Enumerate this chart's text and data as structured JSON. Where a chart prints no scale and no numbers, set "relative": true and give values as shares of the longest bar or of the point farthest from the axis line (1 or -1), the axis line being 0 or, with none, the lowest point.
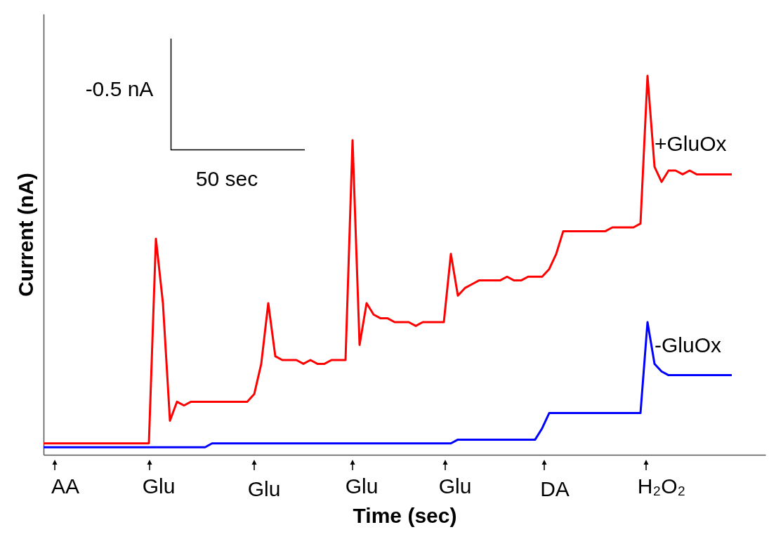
{
  "chart_data": {
    "type": "line",
    "relative": true,
    "xlabel": "Time (sec)",
    "ylabel": "Current (nA)",
    "grid": false,
    "categories": [
      null,
      null,
      null,
      null,
      null,
      null,
      null,
      null,
      null,
      null,
      null,
      null,
      null,
      null,
      null,
      null,
      null,
      null,
      null,
      null,
      null,
      null,
      null,
      null,
      null,
      null,
      null,
      null,
      null,
      null,
      null,
      null,
      null,
      null,
      null,
      null,
      null,
      null,
      null,
      null,
      null,
      null,
      null,
      null,
      null,
      null,
      null,
      null,
      null,
      null,
      null,
      null,
      null,
      null,
      null,
      null,
      null,
      null,
      null,
      null,
      null,
      null,
      null,
      null,
      null,
      null,
      null,
      null,
      null,
      null,
      null,
      null,
      null,
      null,
      null,
      null,
      null,
      null,
      null,
      null,
      null,
      null,
      null,
      null,
      null,
      null,
      null,
      null,
      null,
      null,
      null,
      null,
      null,
      null,
      null,
      null,
      null,
      null,
      null
    ],
    "series": [
      {
        "name": "+GluOx",
        "color": "#ff0000",
        "values": [
          0.03,
          0.03,
          0.03,
          0.03,
          0.03,
          0.03,
          0.03,
          0.03,
          0.03,
          0.03,
          0.03,
          0.03,
          0.03,
          0.03,
          0.03,
          0.03,
          0.57,
          0.4,
          0.09,
          0.14,
          0.13,
          0.14,
          0.14,
          0.14,
          0.14,
          0.14,
          0.14,
          0.14,
          0.14,
          0.14,
          0.16,
          0.24,
          0.4,
          0.26,
          0.25,
          0.25,
          0.25,
          0.24,
          0.25,
          0.24,
          0.24,
          0.25,
          0.25,
          0.25,
          0.83,
          0.29,
          0.4,
          0.37,
          0.36,
          0.36,
          0.35,
          0.35,
          0.35,
          0.34,
          0.35,
          0.35,
          0.35,
          0.35,
          0.53,
          0.42,
          0.44,
          0.45,
          0.46,
          0.46,
          0.46,
          0.46,
          0.47,
          0.46,
          0.46,
          0.47,
          0.47,
          0.47,
          0.49,
          0.53,
          0.59,
          0.59,
          0.59,
          0.59,
          0.59,
          0.59,
          0.59,
          0.6,
          0.6,
          0.6,
          0.6,
          0.61,
          1.0,
          0.76,
          0.72,
          0.75,
          0.75,
          0.74,
          0.75,
          0.74,
          0.74,
          0.74,
          0.74,
          0.74,
          0.74
        ]
      },
      {
        "name": "-GluOx",
        "color": "#0000ff",
        "values": [
          0.02,
          0.02,
          0.02,
          0.02,
          0.02,
          0.02,
          0.02,
          0.02,
          0.02,
          0.02,
          0.02,
          0.02,
          0.02,
          0.02,
          0.02,
          0.02,
          0.02,
          0.02,
          0.02,
          0.02,
          0.02,
          0.02,
          0.02,
          0.02,
          0.03,
          0.03,
          0.03,
          0.03,
          0.03,
          0.03,
          0.03,
          0.03,
          0.03,
          0.03,
          0.03,
          0.03,
          0.03,
          0.03,
          0.03,
          0.03,
          0.03,
          0.03,
          0.03,
          0.03,
          0.03,
          0.03,
          0.03,
          0.03,
          0.03,
          0.03,
          0.03,
          0.03,
          0.03,
          0.03,
          0.03,
          0.03,
          0.03,
          0.03,
          0.03,
          0.04,
          0.04,
          0.04,
          0.04,
          0.04,
          0.04,
          0.04,
          0.04,
          0.04,
          0.04,
          0.04,
          0.04,
          0.07,
          0.11,
          0.11,
          0.11,
          0.11,
          0.11,
          0.11,
          0.11,
          0.11,
          0.11,
          0.11,
          0.11,
          0.11,
          0.11,
          0.11,
          0.35,
          0.24,
          0.22,
          0.21,
          0.21,
          0.21,
          0.21,
          0.21,
          0.21,
          0.21,
          0.21,
          0.21,
          0.21
        ]
      }
    ],
    "annotations": [
      "-0.5 nA",
      "50 sec",
      "AA",
      "Glu",
      "Glu",
      "Glu",
      "Glu",
      "DA",
      "H₂O₂"
    ]
  }
}
